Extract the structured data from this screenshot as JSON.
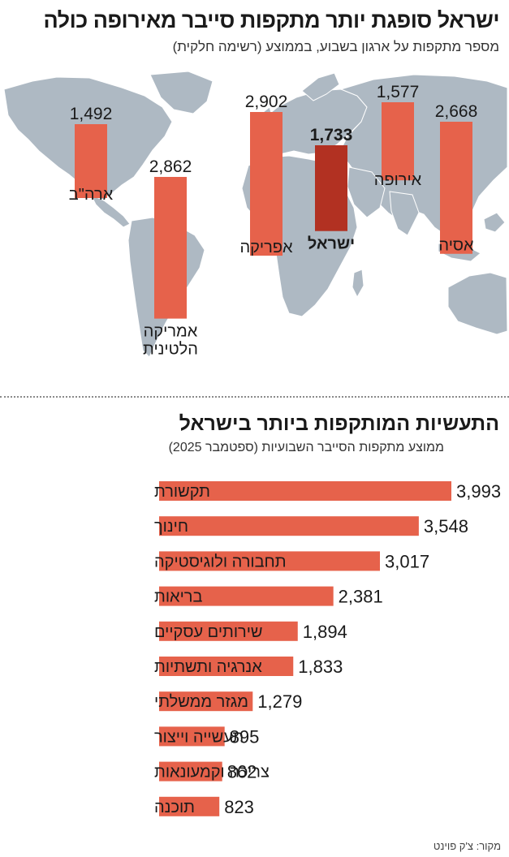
{
  "header": {
    "title": "ישראל סופגת יותר מתקפות סייבר מאירופה כולה",
    "subtitle": "מספר מתקפות על ארגון בשבוע, בממוצע (רשימה חלקית)"
  },
  "colors": {
    "bar": "#e6624b",
    "highlight": "#b23122",
    "map_land": "#aeb9c3",
    "map_water": "#ffffff"
  },
  "chart_data": [
    {
      "type": "bar",
      "title": "ישראל סופגת יותר מתקפות סייבר מאירופה כולה",
      "subtitle": "מספר מתקפות על ארגון בשבוע, בממוצע (רשימה חלקית)",
      "background": "world map",
      "categories": [
        "ארה\"ב",
        "אמריקה הלטינית",
        "אפריקה",
        "ישראל",
        "אירופה",
        "אסיה"
      ],
      "values": [
        1492,
        2862,
        2902,
        1733,
        1577,
        2668
      ],
      "value_labels": [
        "1,492",
        "2,862",
        "2,902",
        "1,733",
        "1,577",
        "2,668"
      ],
      "highlight": "ישראל"
    },
    {
      "type": "bar",
      "orientation": "horizontal",
      "title": "התעשיות המותקפות ביותר בישראל",
      "subtitle": "ממוצע מתקפות הסייבר השבועיות (ספטמבר 2025)",
      "categories": [
        "תקשורת",
        "חינוך",
        "תחבורה ולוגיסטיקה",
        "בריאות",
        "שירותים עסקיים",
        "אנרגיה ותשתיות",
        "מגזר ממשלתי",
        "תעשייה וייצור",
        "צריכה וקמעונאות",
        "תוכנה"
      ],
      "values": [
        3993,
        3548,
        3017,
        2381,
        1894,
        1833,
        1279,
        895,
        862,
        823
      ],
      "value_labels": [
        "3,993",
        "3,548",
        "3,017",
        "2,381",
        "1,894",
        "1,833",
        "1,279",
        "895",
        "862",
        "823"
      ]
    }
  ],
  "source": "מקור: צ'ק פוינט"
}
